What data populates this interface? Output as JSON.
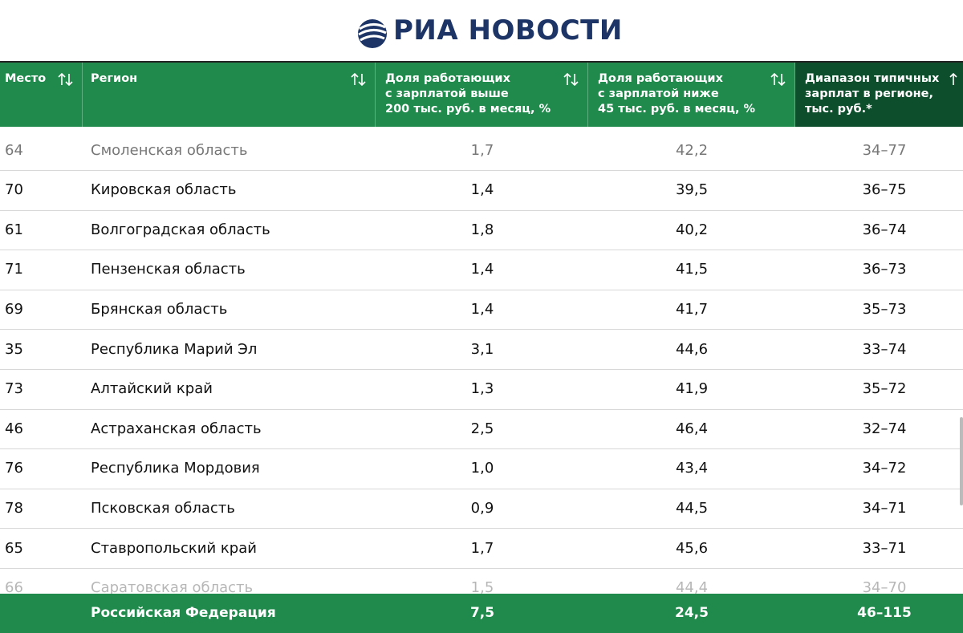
{
  "header": {
    "logo": "РИА НОВОСТИ"
  },
  "table": {
    "columns": [
      "Место",
      "Регион",
      "Доля работающих\nс зарплатой выше\n200 тыс. руб. в месяц, %",
      "Доля работающих\nс зарплатой ниже\n45 тыс. руб. в месяц, %",
      "Диапазон типичных\nзарплат в регионе,\nтыс. руб.*"
    ],
    "rows": [
      [
        "64",
        "Смоленская область",
        "1,7",
        "42,2",
        "34–77"
      ],
      [
        "70",
        "Кировская область",
        "1,4",
        "39,5",
        "36–75"
      ],
      [
        "61",
        "Волгоградская область",
        "1,8",
        "40,2",
        "36–74"
      ],
      [
        "71",
        "Пензенская область",
        "1,4",
        "41,5",
        "36–73"
      ],
      [
        "69",
        "Брянская область",
        "1,4",
        "41,7",
        "35–73"
      ],
      [
        "35",
        "Республика Марий Эл",
        "3,1",
        "44,6",
        "33–74"
      ],
      [
        "73",
        "Алтайский край",
        "1,3",
        "41,9",
        "35–72"
      ],
      [
        "46",
        "Астраханская область",
        "2,5",
        "46,4",
        "32–74"
      ],
      [
        "76",
        "Республика Мордовия",
        "1,0",
        "43,4",
        "34–72"
      ],
      [
        "78",
        "Псковская область",
        "0,9",
        "44,5",
        "34–71"
      ],
      [
        "65",
        "Ставропольский край",
        "1,7",
        "45,6",
        "33–71"
      ],
      [
        "66",
        "Саратовская область",
        "1,5",
        "44,4",
        "34–70"
      ]
    ],
    "total": [
      "Российская Федерация",
      "7,5",
      "24,5",
      "46–115"
    ]
  }
}
